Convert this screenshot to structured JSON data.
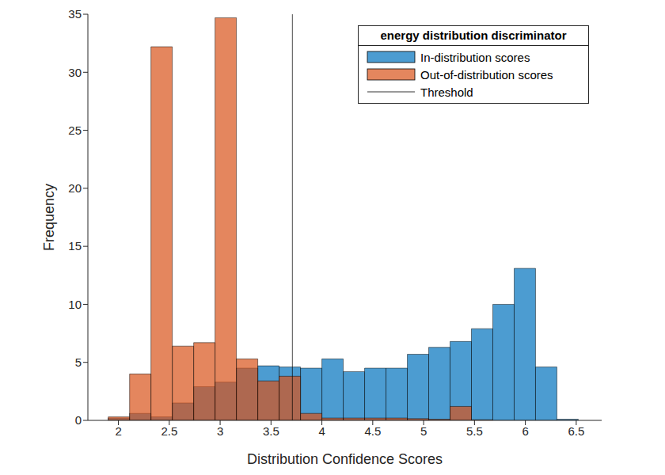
{
  "chart_data": {
    "type": "histogram",
    "x_label": "Distribution Confidence Scores",
    "y_label": "Frequency",
    "legend_title": "energy distribution discriminator",
    "bins": [
      1.9,
      2.11,
      2.32,
      2.53,
      2.74,
      2.95,
      3.16,
      3.37,
      3.58,
      3.79,
      4.0,
      4.21,
      4.42,
      4.63,
      4.84,
      5.05,
      5.26,
      5.47,
      5.68,
      5.89,
      6.1,
      6.31,
      6.52
    ],
    "series": [
      {
        "name": "In-distribution scores",
        "color": "#0072bd",
        "values": [
          0.2,
          0.6,
          0.3,
          1.5,
          2.9,
          3.3,
          4.5,
          4.7,
          4.6,
          4.5,
          5.3,
          4.2,
          4.5,
          4.5,
          5.7,
          6.3,
          6.8,
          7.9,
          10,
          13.1,
          4.6,
          0.1
        ]
      },
      {
        "name": "Out-of-distribution scores",
        "color": "#d95319",
        "values": [
          0.3,
          4.0,
          32.2,
          6.4,
          6.7,
          34.7,
          5.3,
          3.4,
          3.8,
          0.6,
          0.2,
          0.2,
          0.2,
          0.2,
          0.15,
          0.1,
          1.2,
          0.05,
          0,
          0,
          0,
          0
        ]
      }
    ],
    "reference_lines": [
      {
        "name": "Threshold",
        "x": 3.71,
        "color": "#000000"
      }
    ],
    "xlim": [
      1.7,
      6.75
    ],
    "xticks": [
      2,
      2.5,
      3,
      3.5,
      4,
      4.5,
      5,
      5.5,
      6,
      6.5
    ],
    "ylim": [
      0,
      35
    ],
    "yticks": [
      0,
      5,
      10,
      15,
      20,
      25,
      30,
      35
    ],
    "legend": "upper right"
  }
}
